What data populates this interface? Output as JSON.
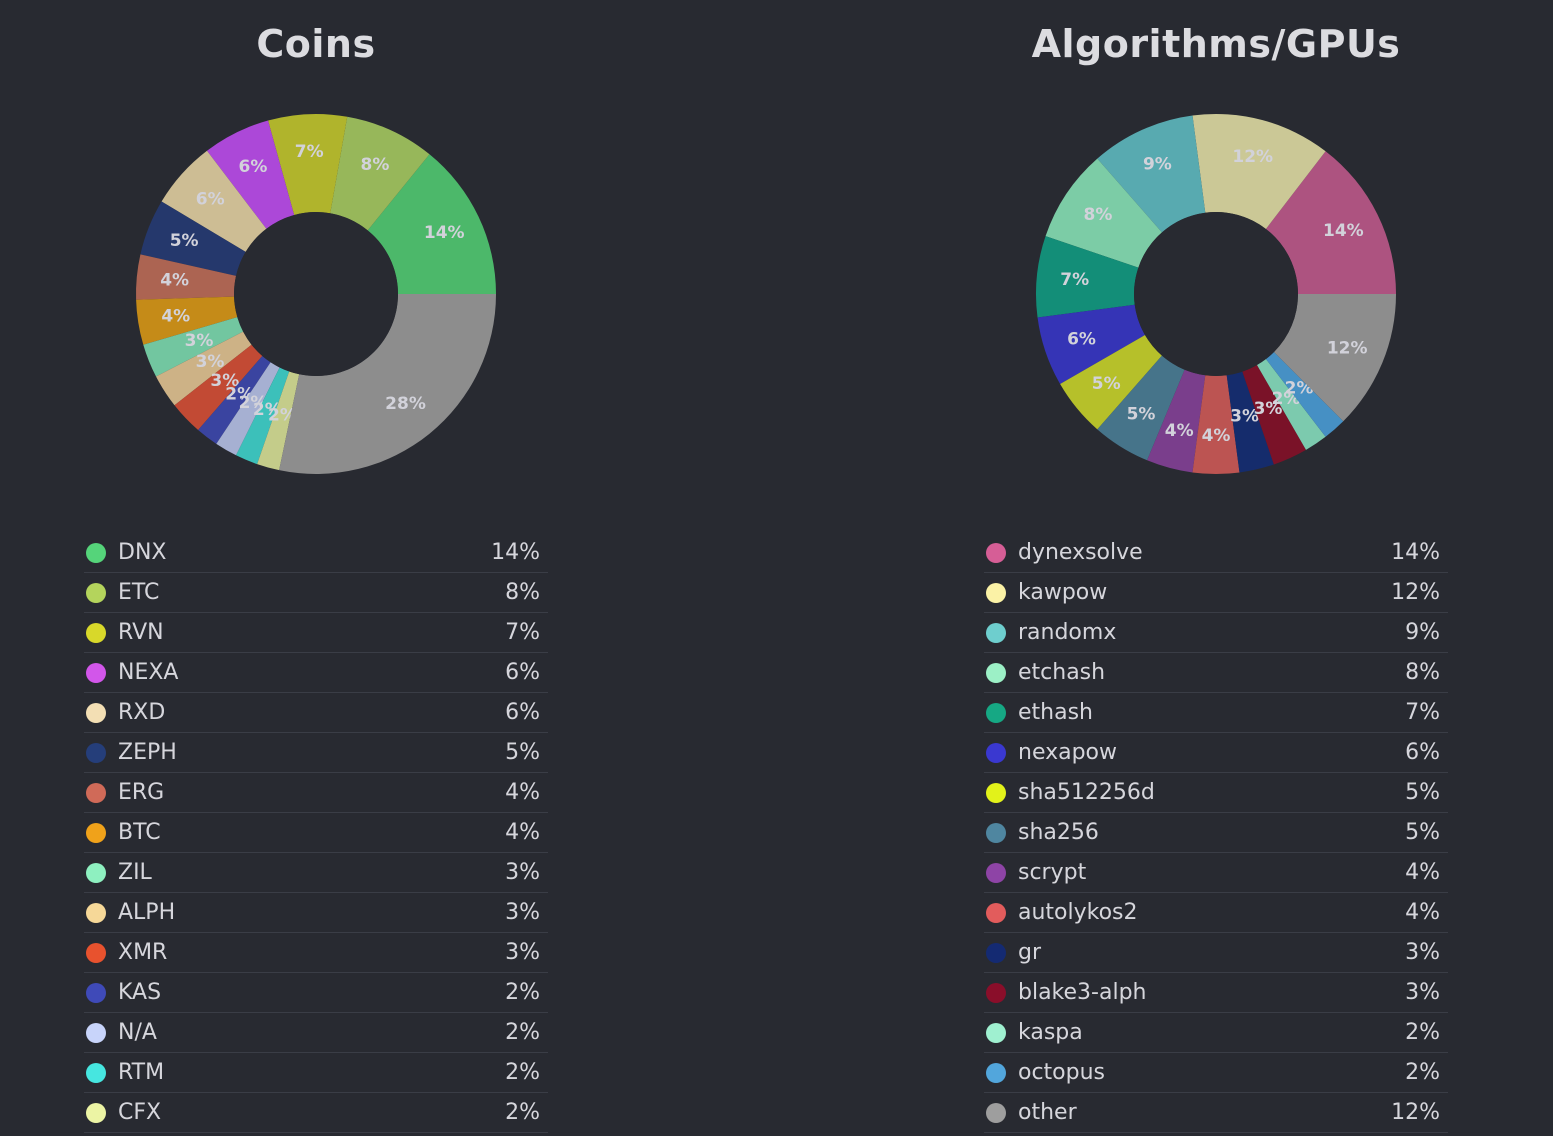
{
  "chart_data": [
    {
      "type": "pie",
      "title": "Coins",
      "slices": [
        {
          "label": "DNX",
          "pct_label": "14%",
          "value": 14,
          "color": "#4cb86a",
          "legend_color": "#55d47a"
        },
        {
          "label": "ETC",
          "pct_label": "8%",
          "value": 8,
          "color": "#97b75a",
          "legend_color": "#b4d45c"
        },
        {
          "label": "RVN",
          "pct_label": "7%",
          "value": 7,
          "color": "#b0b42c",
          "legend_color": "#d8d82a"
        },
        {
          "label": "NEXA",
          "pct_label": "6%",
          "value": 6,
          "color": "#ac48d8",
          "legend_color": "#d256ea"
        },
        {
          "label": "RXD",
          "pct_label": "6%",
          "value": 6,
          "color": "#cdbd94",
          "legend_color": "#f3dfb4"
        },
        {
          "label": "ZEPH",
          "pct_label": "5%",
          "value": 5,
          "color": "#25386c",
          "legend_color": "#253e7a"
        },
        {
          "label": "ERG",
          "pct_label": "4%",
          "value": 4,
          "color": "#ac6452",
          "legend_color": "#d06a58"
        },
        {
          "label": "BTC",
          "pct_label": "4%",
          "value": 4,
          "color": "#c58b18",
          "legend_color": "#f0a21a"
        },
        {
          "label": "ZIL",
          "pct_label": "3%",
          "value": 3,
          "color": "#72c6a0",
          "legend_color": "#8ef0c0"
        },
        {
          "label": "ALPH",
          "pct_label": "3%",
          "value": 3,
          "color": "#cdb286",
          "legend_color": "#f6d898"
        },
        {
          "label": "XMR",
          "pct_label": "3%",
          "value": 3,
          "color": "#c24a34",
          "legend_color": "#e8522e"
        },
        {
          "label": "KAS",
          "pct_label": "2%",
          "value": 2,
          "color": "#3a44a0",
          "legend_color": "#3f4ab8"
        },
        {
          "label": "N/A",
          "pct_label": "2%",
          "value": 2,
          "color": "#a6b0d2",
          "legend_color": "#c8d4fa"
        },
        {
          "label": "RTM",
          "pct_label": "2%",
          "value": 2,
          "color": "#3cc0ba",
          "legend_color": "#46e6e0"
        },
        {
          "label": "CFX",
          "pct_label": "2%",
          "value": 2,
          "color": "#c4cc8a",
          "legend_color": "#ecf4a4"
        },
        {
          "label": "",
          "pct_label": "28%",
          "value": 28,
          "color": "#8d8d8d",
          "legend_color": "#8d8d8d"
        }
      ]
    },
    {
      "type": "pie",
      "title": "Algorithms/GPUs",
      "slices": [
        {
          "label": "dynexsolve",
          "pct_label": "14%",
          "value": 14,
          "color": "#ad5380",
          "legend_color": "#d65e96"
        },
        {
          "label": "kawpow",
          "pct_label": "12%",
          "value": 12,
          "color": "#cbc896",
          "legend_color": "#fbf2a6"
        },
        {
          "label": "randomx",
          "pct_label": "9%",
          "value": 9,
          "color": "#58aab0",
          "legend_color": "#6ecece"
        },
        {
          "label": "etchash",
          "pct_label": "8%",
          "value": 8,
          "color": "#7ccca6",
          "legend_color": "#9cf0c6"
        },
        {
          "label": "ethash",
          "pct_label": "7%",
          "value": 7,
          "color": "#138e78",
          "legend_color": "#16a884"
        },
        {
          "label": "nexapow",
          "pct_label": "6%",
          "value": 6,
          "color": "#3534b6",
          "legend_color": "#3a38d0"
        },
        {
          "label": "sha512256d",
          "pct_label": "5%",
          "value": 5,
          "color": "#b6c02a",
          "legend_color": "#e2f21a"
        },
        {
          "label": "sha256",
          "pct_label": "5%",
          "value": 5,
          "color": "#46748a",
          "legend_color": "#4f86a0"
        },
        {
          "label": "scrypt",
          "pct_label": "4%",
          "value": 4,
          "color": "#7a3e8c",
          "legend_color": "#8e44a6"
        },
        {
          "label": "autolykos2",
          "pct_label": "4%",
          "value": 4,
          "color": "#bc5452",
          "legend_color": "#e25c5c"
        },
        {
          "label": "gr",
          "pct_label": "3%",
          "value": 3,
          "color": "#152c6c",
          "legend_color": "#142a72"
        },
        {
          "label": "blake3-alph",
          "pct_label": "3%",
          "value": 3,
          "color": "#7a1228",
          "legend_color": "#8a0e2a"
        },
        {
          "label": "kaspa",
          "pct_label": "2%",
          "value": 2,
          "color": "#7ccaae",
          "legend_color": "#9ff0d0"
        },
        {
          "label": "octopus",
          "pct_label": "2%",
          "value": 2,
          "color": "#4690c4",
          "legend_color": "#52a6dc"
        },
        {
          "label": "other",
          "pct_label": "12%",
          "value": 12,
          "color": "#8d8d8d",
          "legend_color": "#9e9e9e"
        }
      ]
    }
  ]
}
